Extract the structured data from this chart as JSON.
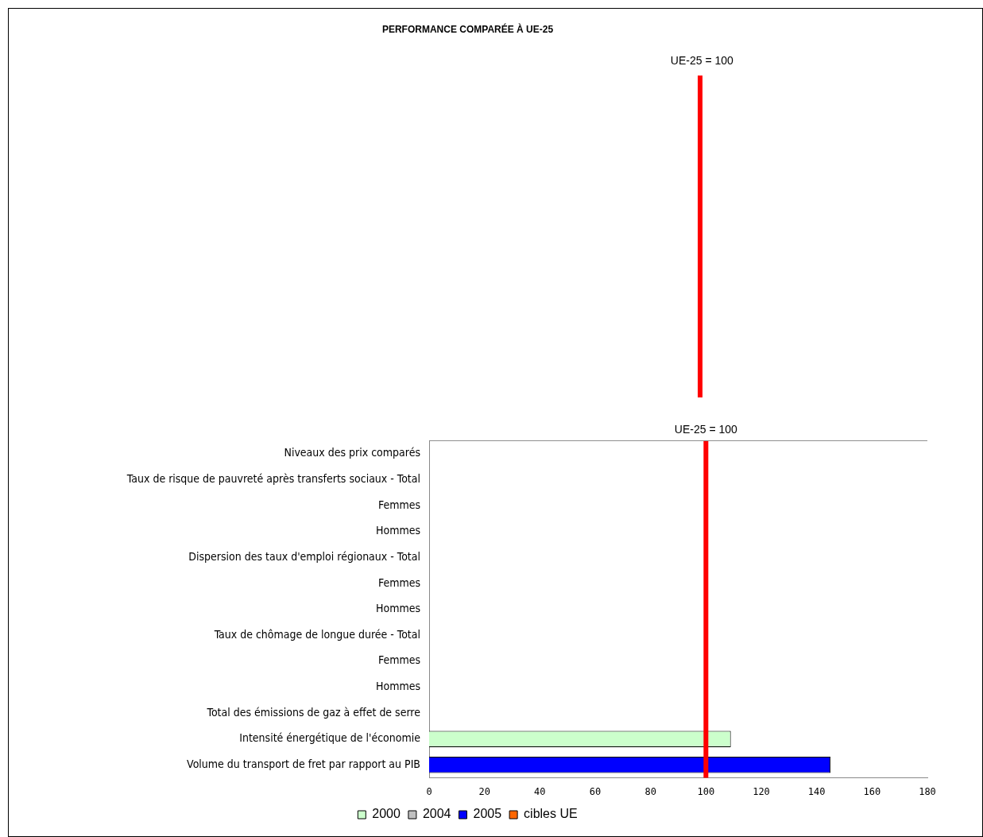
{
  "chart_data": {
    "type": "bar",
    "orientation": "horizontal",
    "title": "PERFORMANCE COMPARÉE À UE-25",
    "categories": [
      "Niveaux des prix comparés",
      "Taux de risque de pauvreté après transferts sociaux - Total",
      "Femmes",
      "Hommes",
      "Dispersion des taux d'emploi régionaux - Total",
      "Femmes",
      "Hommes",
      "Taux de chômage de longue durée - Total",
      "Femmes",
      "Hommes",
      "Total des émissions de gaz à effet de serre",
      "Intensité énergétique de l'économie",
      "Volume du transport de fret par rapport au PIB"
    ],
    "series": [
      {
        "name": "2000",
        "color": "#ccffcc",
        "values": [
          null,
          null,
          null,
          null,
          null,
          null,
          null,
          null,
          null,
          null,
          null,
          109,
          null
        ]
      },
      {
        "name": "2004",
        "color": "#c0c0c0",
        "values": [
          null,
          null,
          null,
          null,
          null,
          null,
          null,
          null,
          null,
          null,
          null,
          null,
          null
        ]
      },
      {
        "name": "2005",
        "color": "#0000ff",
        "values": [
          null,
          null,
          null,
          null,
          null,
          null,
          null,
          null,
          null,
          null,
          null,
          null,
          145
        ]
      },
      {
        "name": "cibles UE",
        "color": "#ff6600",
        "values": [
          null,
          null,
          null,
          null,
          null,
          null,
          null,
          null,
          null,
          null,
          null,
          null,
          null
        ]
      }
    ],
    "xlim": [
      0,
      180
    ],
    "xticks": [
      0,
      20,
      40,
      60,
      80,
      100,
      120,
      140,
      160,
      180
    ],
    "ref_lines": [
      {
        "axis": "x",
        "value": 100,
        "label": "UE-25 = 100",
        "color": "#ff0000"
      }
    ],
    "annotations": [
      "UE-25 = 100"
    ],
    "grid": false,
    "legend": "bottom"
  }
}
